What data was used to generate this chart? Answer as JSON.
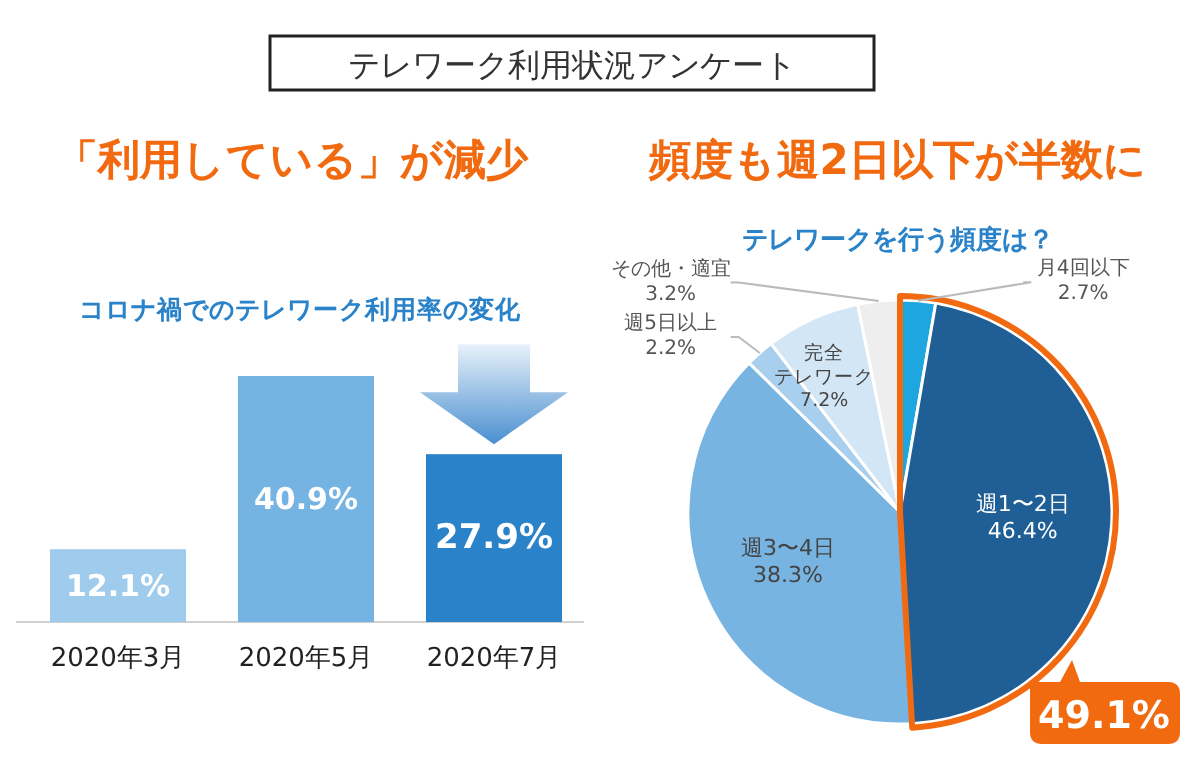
{
  "chart_data": [
    {
      "type": "bar",
      "title": "コロナ禍でのテレワーク利用率の変化",
      "annotations": [
        "テレワーク利用状況アンケート",
        "「利用している」が減少"
      ],
      "categories": [
        "2020年3月",
        "2020年5月",
        "2020年7月"
      ],
      "values": [
        12.1,
        40.9,
        27.9
      ],
      "colors": [
        "#9fcbec",
        "#74b3e2",
        "#2a82c8"
      ],
      "value_labels": [
        "12.1%",
        "40.9%",
        "27.9%"
      ]
    },
    {
      "type": "pie",
      "title": "テレワークを行う頻度は？",
      "annotations": [
        "頻度も週2日以下が半数に",
        "49.1%"
      ],
      "categories": [
        "月4回以下",
        "週1〜2日",
        "週3〜4日",
        "週5日以上",
        "完全テレワーク",
        "その他・適宜"
      ],
      "values": [
        2.7,
        46.4,
        38.3,
        2.2,
        7.2,
        3.2
      ],
      "colors": [
        "#1da6e0",
        "#1f5f95",
        "#77b4e2",
        "#a9cfee",
        "#d3e6f6",
        "#eeeeee"
      ],
      "value_labels": [
        "2.7%",
        "46.4%",
        "38.3%",
        "2.2%",
        "7.2%",
        "3.2%"
      ]
    }
  ]
}
